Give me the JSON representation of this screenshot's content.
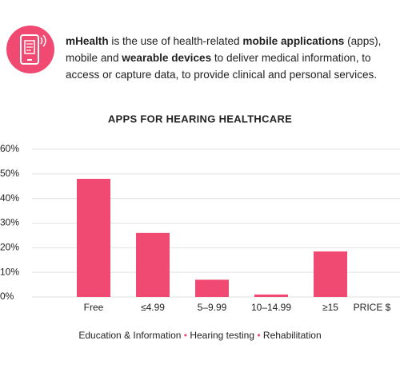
{
  "header": {
    "segments": [
      {
        "text": "mHealth",
        "bold": true
      },
      {
        "text": " is the use of health-related ",
        "bold": false
      },
      {
        "text": "mobile applications",
        "bold": true
      },
      {
        "text": " (apps), mobile and ",
        "bold": false
      },
      {
        "text": "wearable devices",
        "bold": true
      },
      {
        "text": " to deliver medical information, to access or capture data, to provide clinical and personal services.",
        "bold": false
      }
    ]
  },
  "chart_data": {
    "type": "bar",
    "title": "APPS FOR HEARING HEALTHCARE",
    "categories": [
      "Free",
      "≤4.99",
      "5–9.99",
      "10–14.99",
      "≥15"
    ],
    "x_label": "PRICE $",
    "values": [
      48,
      26,
      7,
      1,
      18.5
    ],
    "color": "#f04a72",
    "ylim": [
      0,
      60
    ],
    "yticks": [
      {
        "value": 0,
        "label": "0%"
      },
      {
        "value": 10,
        "label": "10%"
      },
      {
        "value": 20,
        "label": "20%"
      },
      {
        "value": 30,
        "label": "30%"
      },
      {
        "value": 40,
        "label": "40%"
      },
      {
        "value": 50,
        "label": "50%"
      },
      {
        "value": 60,
        "label": "60%"
      }
    ],
    "grid": true,
    "footnote": [
      "Education & Information",
      "Hearing testing",
      "Rehabilitation"
    ]
  }
}
